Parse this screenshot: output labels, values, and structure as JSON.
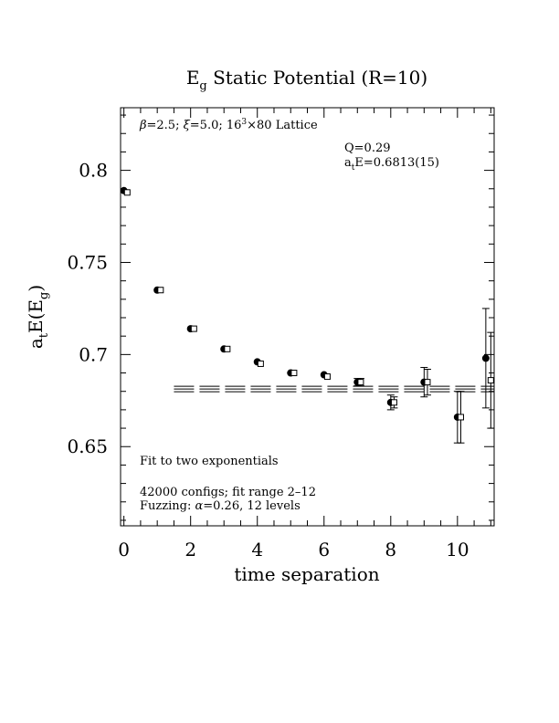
{
  "chart_data": {
    "type": "scatter",
    "title": {
      "main": "E",
      "sub": "g",
      "rest": " Static Potential (R=10)"
    },
    "xlabel": "time separation",
    "ylabel": {
      "a": "a",
      "t": "t",
      "mid": "E(E",
      "g": "g",
      "end": ")"
    },
    "xlim": [
      -0.1,
      11.1
    ],
    "ylim": [
      0.607,
      0.834
    ],
    "x_ticks": [
      {
        "v": 0,
        "label": "0"
      },
      {
        "v": 2,
        "label": "2"
      },
      {
        "v": 4,
        "label": "4"
      },
      {
        "v": 6,
        "label": "6"
      },
      {
        "v": 8,
        "label": "8"
      },
      {
        "v": 10,
        "label": "10"
      }
    ],
    "y_ticks": [
      {
        "v": 0.65,
        "label": "0.65"
      },
      {
        "v": 0.7,
        "label": "0.7"
      },
      {
        "v": 0.75,
        "label": "0.75"
      },
      {
        "v": 0.8,
        "label": "0.8"
      }
    ],
    "annotations": {
      "lattice": {
        "beta": "β",
        "beta_val": "=2.5; ",
        "xi": "ξ",
        "xi_val": "=5.0; 16",
        "exp": "3",
        "rest": "×80 Lattice"
      },
      "q": "Q=0.29",
      "energy": {
        "a": "a",
        "t": "t",
        "rest": "E=0.6813(15)"
      },
      "fit": "Fit to two exponentials",
      "configs": "42000 configs; fit range 2–12",
      "fuzz": {
        "pre": "Fuzzing: ",
        "alpha": "α",
        "rest": "=0.26, 12 levels"
      }
    },
    "fit": {
      "value": 0.6813,
      "error": 0.0015,
      "t_start": 1.5,
      "t_end": 11.1
    },
    "series": [
      {
        "marker": "filled-circle",
        "points": [
          {
            "t": 0,
            "v": 0.789,
            "e": 0
          },
          {
            "t": 1,
            "v": 0.735,
            "e": 0
          },
          {
            "t": 2,
            "v": 0.714,
            "e": 0
          },
          {
            "t": 3,
            "v": 0.703,
            "e": 0
          },
          {
            "t": 4,
            "v": 0.696,
            "e": 0
          },
          {
            "t": 5,
            "v": 0.69,
            "e": 0
          },
          {
            "t": 6,
            "v": 0.689,
            "e": 0
          },
          {
            "t": 7,
            "v": 0.685,
            "e": 0.002
          },
          {
            "t": 8,
            "v": 0.674,
            "e": 0.004
          },
          {
            "t": 9,
            "v": 0.685,
            "e": 0.008
          },
          {
            "t": 10,
            "v": 0.666,
            "e": 0.014
          },
          {
            "t": 10.85,
            "v": 0.698,
            "e": 0.027
          }
        ]
      },
      {
        "marker": "open-square",
        "points": [
          {
            "t": 0.1,
            "v": 0.788,
            "e": 0
          },
          {
            "t": 1.1,
            "v": 0.735,
            "e": 0
          },
          {
            "t": 2.1,
            "v": 0.714,
            "e": 0
          },
          {
            "t": 3.1,
            "v": 0.703,
            "e": 0
          },
          {
            "t": 4.1,
            "v": 0.695,
            "e": 0
          },
          {
            "t": 5.1,
            "v": 0.69,
            "e": 0
          },
          {
            "t": 6.1,
            "v": 0.688,
            "e": 0
          },
          {
            "t": 7.1,
            "v": 0.685,
            "e": 0.002
          },
          {
            "t": 8.1,
            "v": 0.674,
            "e": 0.003
          },
          {
            "t": 9.1,
            "v": 0.685,
            "e": 0.007
          },
          {
            "t": 10.1,
            "v": 0.666,
            "e": 0.014
          },
          {
            "t": 11.0,
            "v": 0.686,
            "e": 0.026
          }
        ]
      }
    ]
  }
}
